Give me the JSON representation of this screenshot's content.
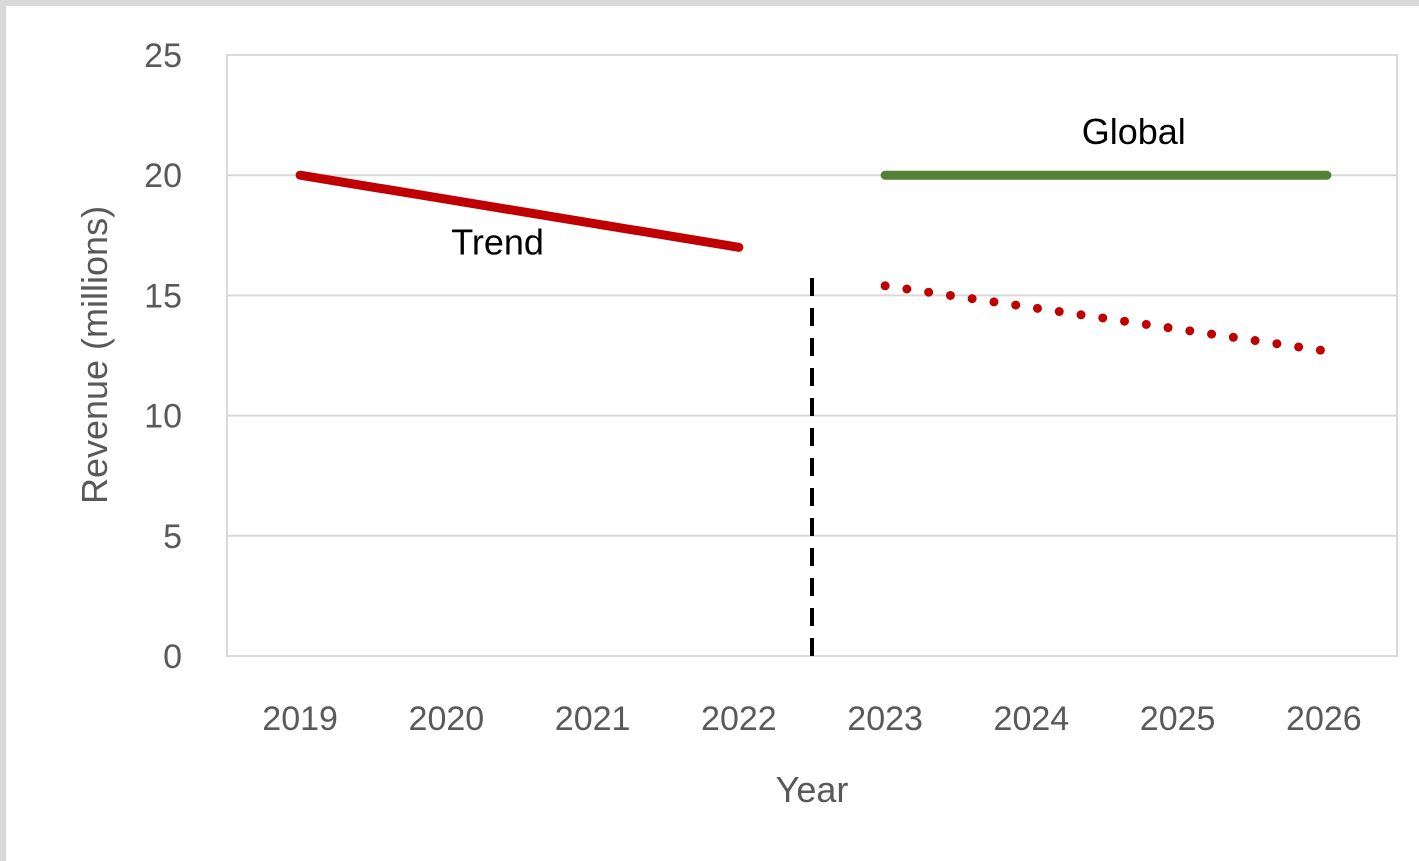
{
  "chart_data": {
    "type": "line",
    "title": "",
    "xlabel": "Year",
    "ylabel": "Revenue (millions)",
    "categories": [
      "2019",
      "2020",
      "2021",
      "2022",
      "2023",
      "2024",
      "2025",
      "2026"
    ],
    "ylim": [
      0,
      25
    ],
    "yticks": [
      0,
      5,
      10,
      15,
      20,
      25
    ],
    "grid": true,
    "legend": "none",
    "series": [
      {
        "style": "solid",
        "color": "#c00000",
        "x": [
          "2019",
          "2020",
          "2021",
          "2022"
        ],
        "values": [
          20,
          19,
          18,
          17
        ]
      },
      {
        "style": "dotted",
        "color": "#c00000",
        "x": [
          "2023",
          "2024",
          "2025",
          "2026"
        ],
        "values": [
          15.4,
          14.5,
          13.6,
          12.7
        ]
      },
      {
        "style": "solid",
        "color": "#548235",
        "x": [
          "2023",
          "2024",
          "2025",
          "2026"
        ],
        "values": [
          20,
          20,
          20,
          20
        ]
      }
    ],
    "divider": {
      "between": [
        "2022",
        "2023"
      ],
      "style": "dashed",
      "color": "#000000"
    },
    "annotations": [
      {
        "text": "Trend",
        "anchor_x": "2020.35",
        "anchor_y": 16.7
      },
      {
        "text": "Global",
        "anchor_x": "2024.7",
        "anchor_y": 21.3
      }
    ]
  }
}
